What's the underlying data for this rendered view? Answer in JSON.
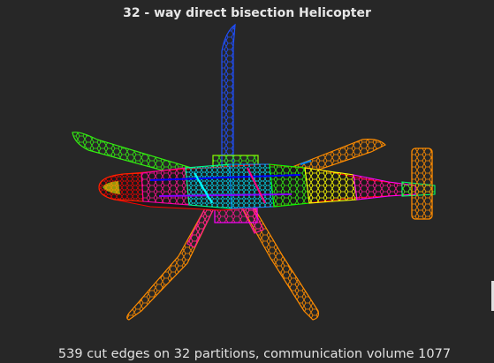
{
  "figure": {
    "title": "32 - way direct bisection Helicopter",
    "caption": "539 cut edges on 32 partitions, communication volume 1077"
  },
  "partition_colors": [
    "#ff0000",
    "#00ff00",
    "#0000ff",
    "#ff00ff",
    "#00ffff",
    "#ffff00",
    "#ff8800",
    "#0088ff",
    "#88ff00",
    "#ff0088",
    "#8800ff",
    "#00ff88"
  ],
  "background_color": "#272727"
}
